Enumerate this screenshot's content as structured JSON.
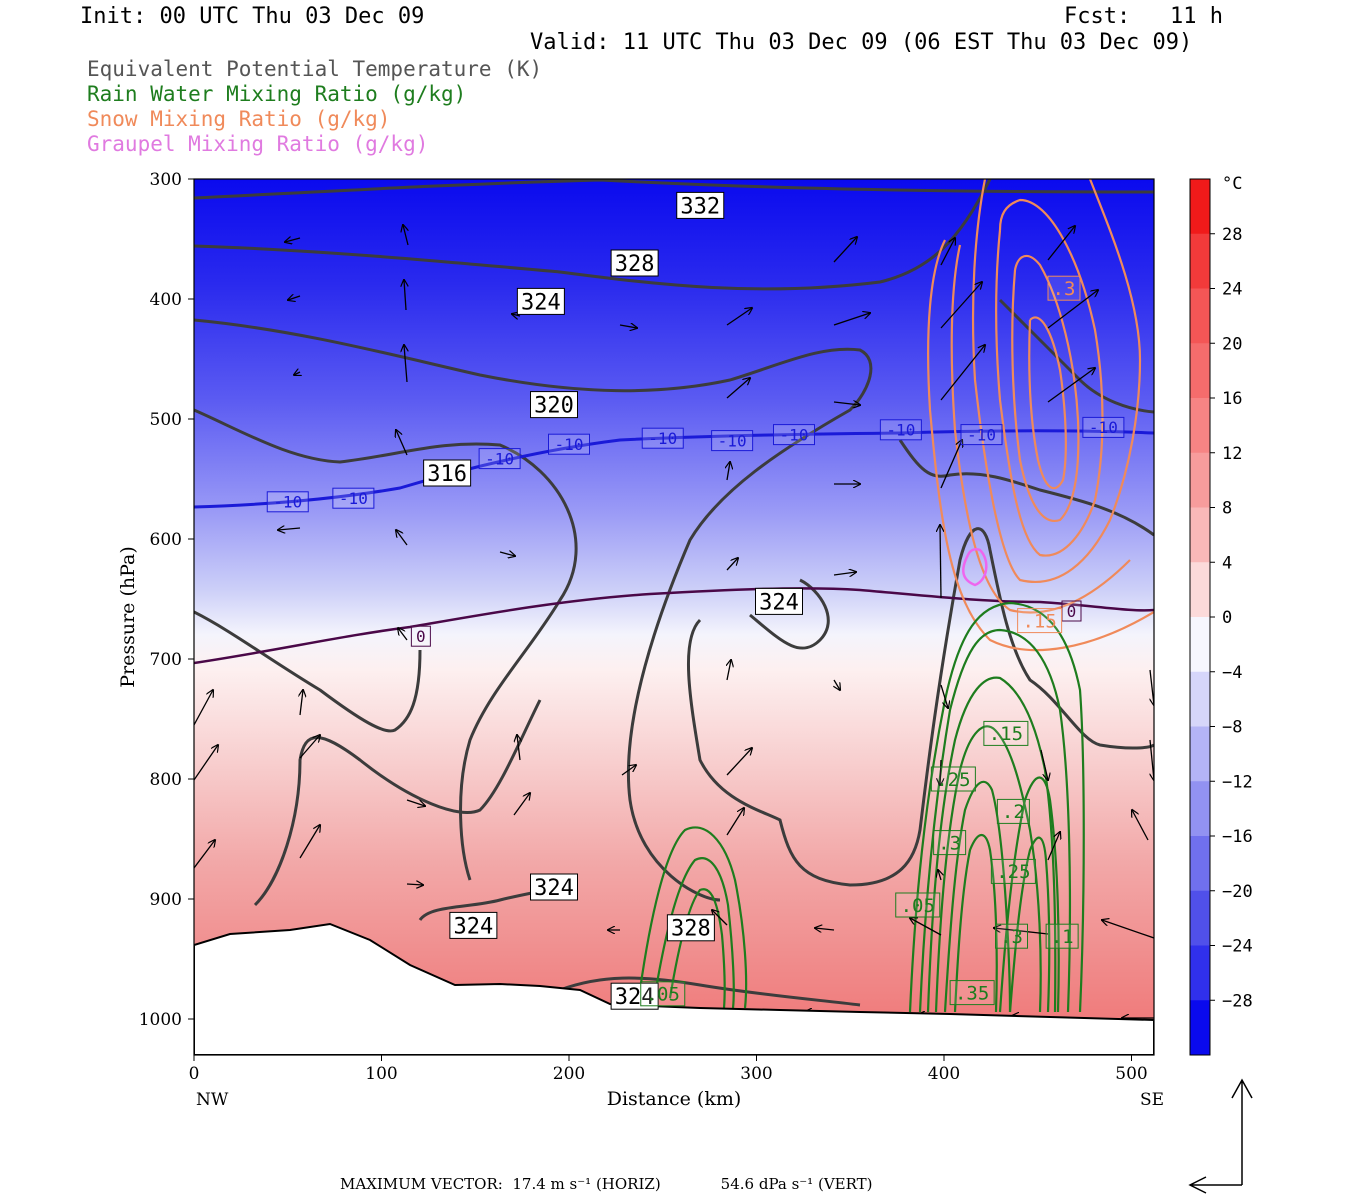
{
  "header": {
    "init": "Init: 00 UTC Thu 03 Dec 09",
    "fcst": "Fcst:   11 h",
    "valid": "Valid: 11 UTC Thu 03 Dec 09 (06 EST Thu 03 Dec 09)"
  },
  "fields": [
    {
      "label": "Equivalent Potential Temperature (K)",
      "color": "#555555"
    },
    {
      "label": "Rain Water Mixing Ratio (g/kg)",
      "color": "#1e7d1e"
    },
    {
      "label": "Snow Mixing Ratio (g/kg)",
      "color": "#f08a5a"
    },
    {
      "label": "Graupel Mixing Ratio (g/kg)",
      "color": "#e07ae0"
    }
  ],
  "footer": {
    "max_vector_label": "MAXIMUM VECTOR:",
    "horiz": "17.4 m s⁻¹ (HORIZ)",
    "vert": "54.6 dPa s⁻¹ (VERT)"
  },
  "chart_data": {
    "type": "cross-section",
    "xlabel": "Distance (km)",
    "ylabel": "Pressure (hPa)",
    "xlim": [
      0,
      512
    ],
    "ylim": [
      1030,
      300
    ],
    "x_ticks": [
      "0",
      "100",
      "200",
      "300",
      "400",
      "500"
    ],
    "y_ticks": [
      "300",
      "400",
      "500",
      "600",
      "700",
      "800",
      "900",
      "1000"
    ],
    "x_end_labels": {
      "left": "NW",
      "right": "SE"
    },
    "colorbar": {
      "unit": "°C",
      "labels": [
        "28",
        "24",
        "20",
        "16",
        "12",
        "8",
        "4",
        "0",
        "−4",
        "−8",
        "−12",
        "−16",
        "−20",
        "−24",
        "−28"
      ]
    },
    "theta_e_labels": [
      {
        "text": "332",
        "x": 270,
        "p": 322
      },
      {
        "text": "328",
        "x": 235,
        "p": 370
      },
      {
        "text": "324",
        "x": 185,
        "p": 402
      },
      {
        "text": "320",
        "x": 192,
        "p": 488
      },
      {
        "text": "316",
        "x": 135,
        "p": 545
      },
      {
        "text": "324",
        "x": 312,
        "p": 652
      },
      {
        "text": "324",
        "x": 192,
        "p": 890
      },
      {
        "text": "324",
        "x": 149,
        "p": 922
      },
      {
        "text": "328",
        "x": 265,
        "p": 924
      },
      {
        "text": "324",
        "x": 235,
        "p": 981
      }
    ],
    "temp_labels": [
      {
        "text": "-10",
        "x": 50,
        "p": 569
      },
      {
        "text": "-10",
        "x": 85,
        "p": 566
      },
      {
        "text": "-10",
        "x": 163,
        "p": 533
      },
      {
        "text": "-10",
        "x": 200,
        "p": 521
      },
      {
        "text": "-10",
        "x": 250,
        "p": 516
      },
      {
        "text": "-10",
        "x": 287,
        "p": 518
      },
      {
        "text": "-10",
        "x": 320,
        "p": 513
      },
      {
        "text": "-10",
        "x": 377,
        "p": 509
      },
      {
        "text": "-10",
        "x": 420,
        "p": 513
      },
      {
        "text": "-10",
        "x": 485,
        "p": 507
      },
      {
        "text": "0",
        "x": 121,
        "p": 681
      },
      {
        "text": "0",
        "x": 468,
        "p": 660
      }
    ],
    "rain_labels": [
      {
        "text": ".15",
        "x": 433,
        "p": 762
      },
      {
        "text": ".25",
        "x": 405,
        "p": 800
      },
      {
        "text": ".2",
        "x": 437,
        "p": 827
      },
      {
        "text": ".3",
        "x": 403,
        "p": 853
      },
      {
        "text": ".25",
        "x": 437,
        "p": 877
      },
      {
        "text": ".05",
        "x": 386,
        "p": 905
      },
      {
        "text": ".3",
        "x": 436,
        "p": 931
      },
      {
        "text": ".1",
        "x": 463,
        "p": 931
      },
      {
        "text": ".35",
        "x": 415,
        "p": 978
      },
      {
        "text": ".05",
        "x": 250,
        "p": 979
      }
    ],
    "snow_labels": [
      {
        "text": ".3",
        "x": 464,
        "p": 391
      },
      {
        "text": ".15",
        "x": 451,
        "p": 668
      }
    ]
  }
}
